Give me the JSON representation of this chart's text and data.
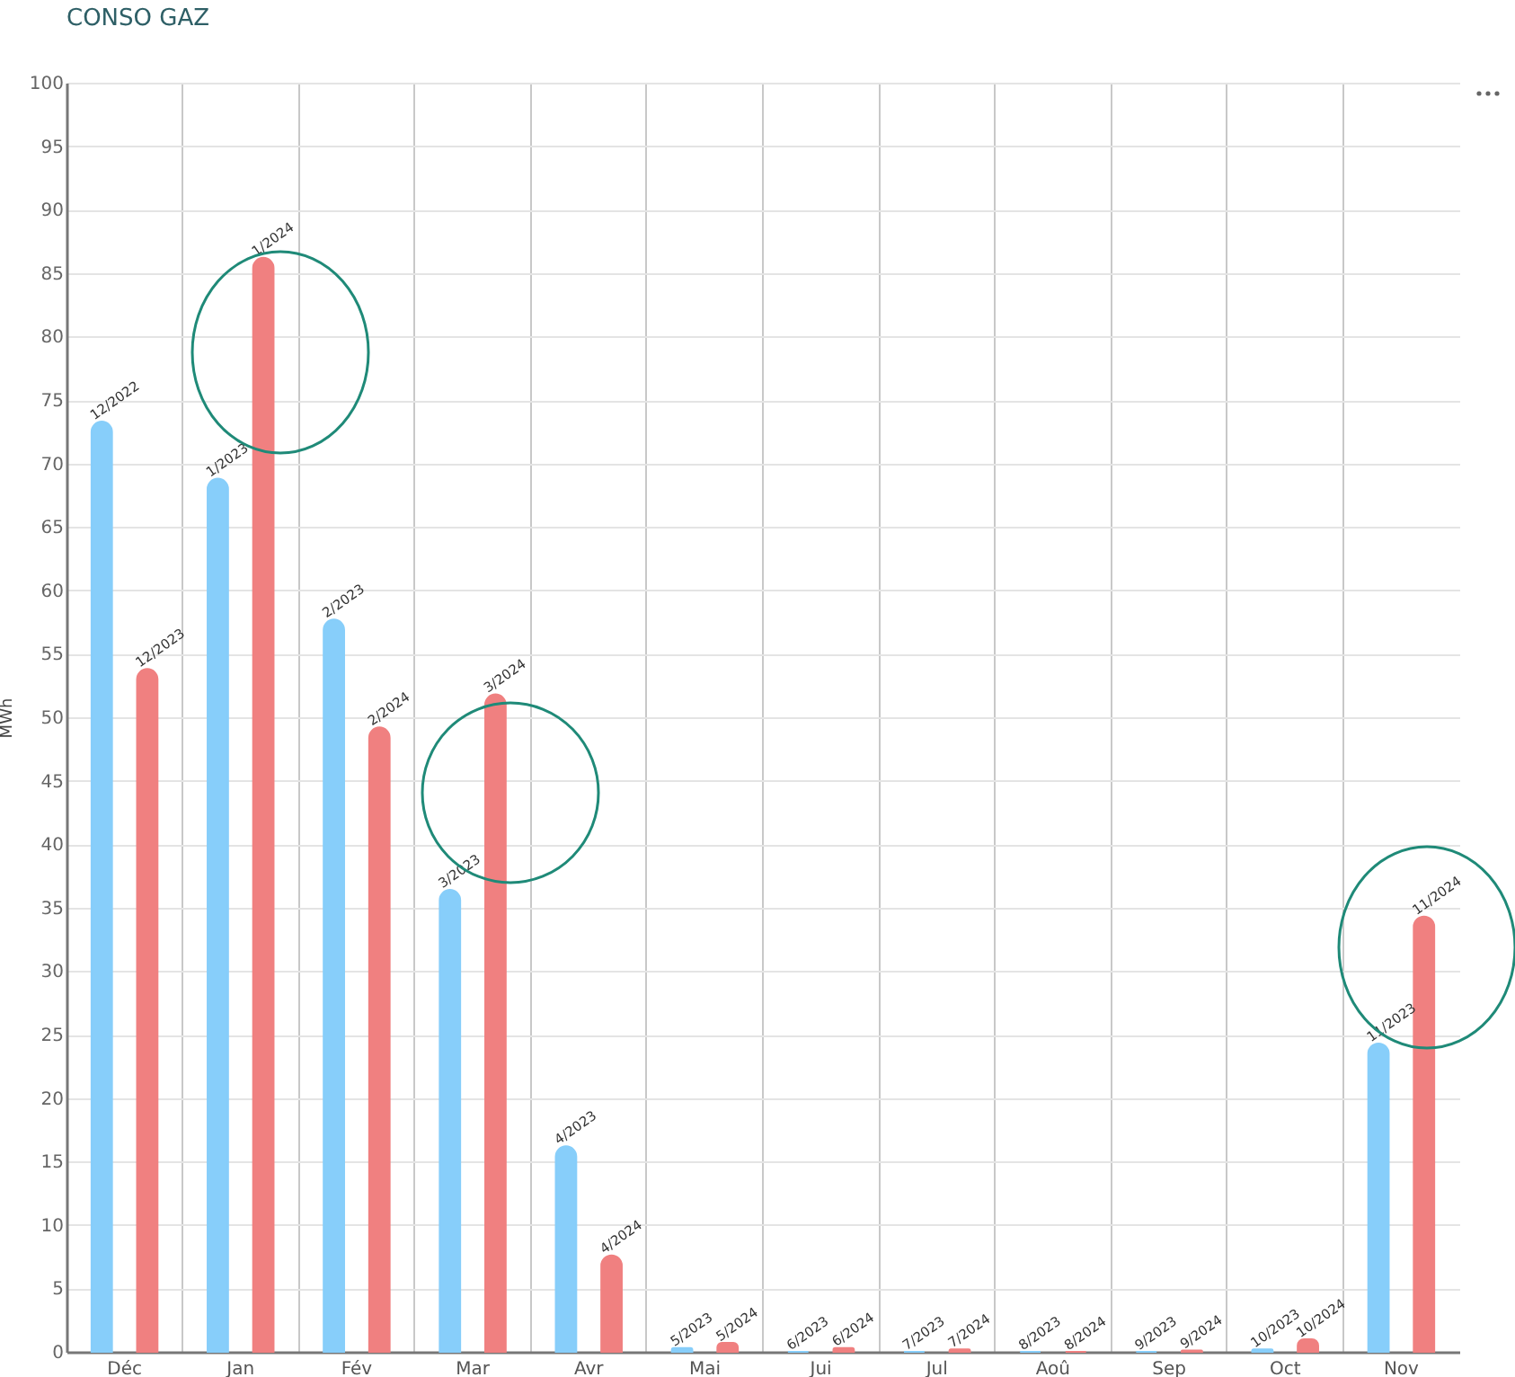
{
  "chart_data": {
    "type": "bar",
    "title": "CONSO GAZ",
    "ylabel": "MWh",
    "categories": [
      "Déc",
      "Jan",
      "Fév",
      "Mar",
      "Avr",
      "Mai",
      "Jui",
      "Jul",
      "Aoû",
      "Sep",
      "Oct",
      "Nov"
    ],
    "series": [
      {
        "color": "#87cefa",
        "values": [
          73.3,
          68.8,
          57.7,
          36.4,
          16.2,
          0.3,
          0,
          0,
          0,
          0,
          0.2,
          24.3
        ],
        "value_labels": [
          "12/2022",
          "1/2023",
          "2/2023",
          "3/2023",
          "4/2023",
          "5/2023",
          "6/2023",
          "7/2023",
          "8/2023",
          "9/2023",
          "10/2023",
          "11/2023"
        ]
      },
      {
        "color": "#f08080",
        "values": [
          53.8,
          86.2,
          49.2,
          51.8,
          7.6,
          0.7,
          0.3,
          0.2,
          0,
          0.1,
          1.0,
          34.3
        ],
        "value_labels": [
          "12/2023",
          "1/2024",
          "2/2024",
          "3/2024",
          "4/2024",
          "5/2024",
          "6/2024",
          "7/2024",
          "8/2024",
          "9/2024",
          "10/2024",
          "11/2024"
        ]
      }
    ],
    "ylim": [
      0,
      100
    ],
    "yticks": [
      0,
      5,
      10,
      15,
      20,
      25,
      30,
      35,
      40,
      45,
      50,
      55,
      60,
      65,
      70,
      75,
      80,
      85,
      90,
      95,
      100
    ],
    "grid": true,
    "legend": false
  }
}
